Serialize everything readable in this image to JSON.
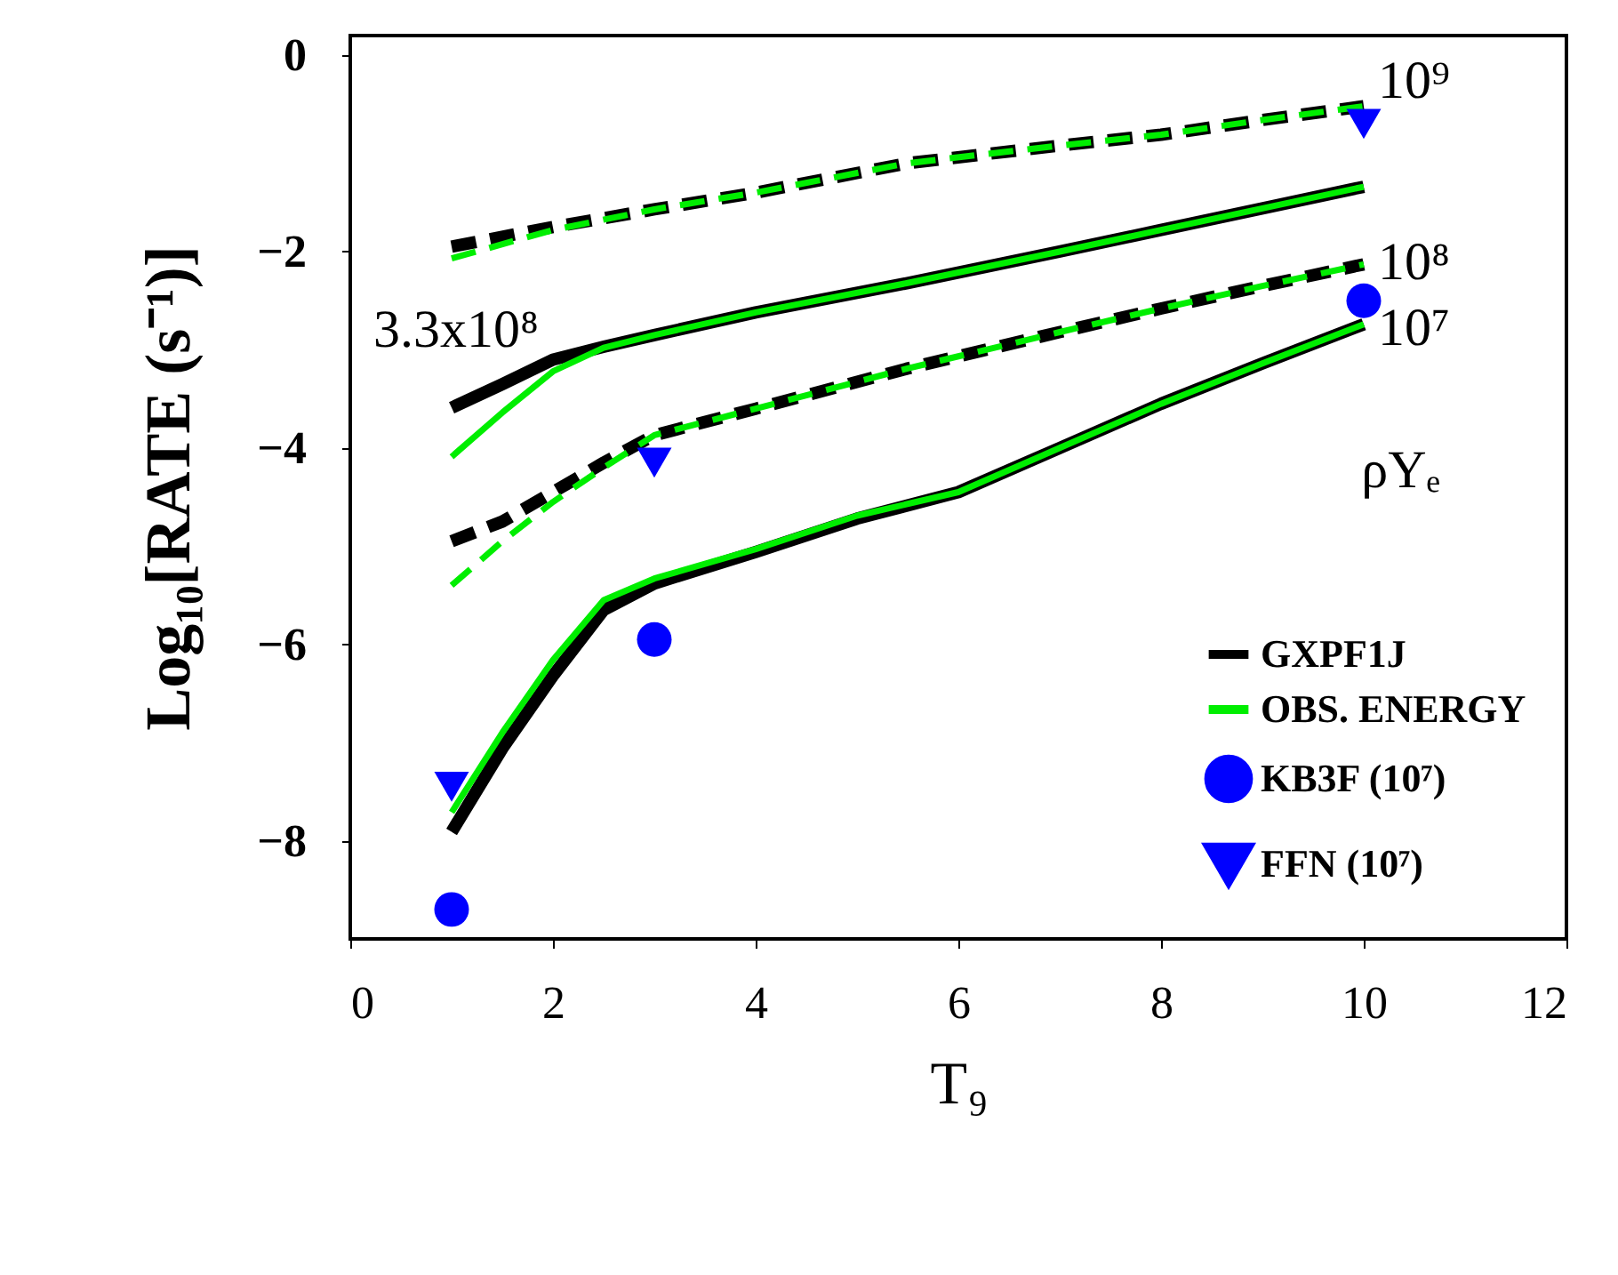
{
  "chart_data": {
    "type": "line",
    "xlabel": "T₉",
    "ylabel": "Log₁₀[RATE (s⁻¹)]",
    "xlim": [
      0,
      12
    ],
    "ylim": [
      -9,
      0.2
    ],
    "xticks": [
      0,
      2,
      4,
      6,
      8,
      10,
      12
    ],
    "yticks": [
      0,
      -2,
      -4,
      -6,
      -8
    ],
    "grid": false,
    "legend": "bottom right",
    "series": [
      {
        "name": "GXPF1J",
        "color": "#000000",
        "line_style": "dashed",
        "x": [
          1,
          2,
          3,
          4,
          5.5,
          7,
          8,
          9,
          10
        ],
        "values": [
          -1.95,
          -1.75,
          -1.57,
          -1.4,
          -1.1,
          -0.92,
          -0.81,
          -0.66,
          -0.52
        ]
      },
      {
        "name": "OBS. ENERGY",
        "color": "#00ee00",
        "line_style": "dashed",
        "x": [
          1,
          2,
          3,
          4,
          5.5,
          7,
          8,
          9,
          10
        ],
        "values": [
          -2.07,
          -1.78,
          -1.57,
          -1.4,
          -1.1,
          -0.92,
          -0.81,
          -0.66,
          -0.52
        ]
      },
      {
        "color": "#000000",
        "line_style": "solid",
        "x": [
          1,
          1.5,
          2,
          2.5,
          3,
          4,
          5.5,
          7,
          8,
          9,
          10
        ],
        "values": [
          -3.59,
          -3.35,
          -3.1,
          -2.97,
          -2.85,
          -2.62,
          -2.32,
          -2.0,
          -1.78,
          -1.56,
          -1.34
        ]
      },
      {
        "color": "#00ee00",
        "line_style": "solid",
        "x": [
          1,
          1.5,
          2,
          2.5,
          3,
          4,
          5.5,
          7,
          8,
          9,
          10
        ],
        "values": [
          -4.09,
          -3.64,
          -3.22,
          -2.98,
          -2.85,
          -2.62,
          -2.32,
          -2.0,
          -1.78,
          -1.56,
          -1.34
        ]
      },
      {
        "color": "#000000",
        "line_style": "dashed",
        "x": [
          1,
          1.5,
          2,
          2.5,
          3,
          4,
          5.5,
          7,
          8,
          9,
          10
        ],
        "values": [
          -4.95,
          -4.75,
          -4.45,
          -4.15,
          -3.87,
          -3.6,
          -3.19,
          -2.82,
          -2.58,
          -2.35,
          -2.13
        ]
      },
      {
        "color": "#00ee00",
        "line_style": "dashed",
        "x": [
          1,
          1.5,
          2,
          2.5,
          3,
          4,
          5.5,
          7,
          8,
          9,
          10
        ],
        "values": [
          -5.4,
          -4.95,
          -4.55,
          -4.2,
          -3.87,
          -3.6,
          -3.19,
          -2.82,
          -2.58,
          -2.35,
          -2.13
        ]
      },
      {
        "color": "#000000",
        "line_style": "solid",
        "x": [
          1,
          1.5,
          2,
          2.5,
          3,
          4,
          5,
          6,
          7,
          8,
          9,
          10
        ],
        "values": [
          -7.91,
          -7.06,
          -6.32,
          -5.65,
          -5.38,
          -5.06,
          -4.72,
          -4.45,
          -4.0,
          -3.55,
          -3.14,
          -2.74
        ]
      },
      {
        "color": "#00ee00",
        "line_style": "solid",
        "x": [
          1,
          1.5,
          2,
          2.5,
          3,
          4,
          5,
          6,
          7,
          8,
          9,
          10
        ],
        "values": [
          -7.71,
          -6.9,
          -6.16,
          -5.55,
          -5.33,
          -5.03,
          -4.69,
          -4.45,
          -4.0,
          -3.55,
          -3.14,
          -2.74
        ]
      },
      {
        "name": "KB3F (10⁷)",
        "type": "scatter",
        "marker": "circle",
        "color": "#0000ff",
        "x": [
          1,
          3,
          10
        ],
        "values": [
          -8.7,
          -5.95,
          -2.5
        ]
      },
      {
        "name": "FFN (10⁷)",
        "type": "scatter",
        "marker": "triangle",
        "color": "#0000ff",
        "x": [
          1,
          3,
          10
        ],
        "values": [
          -7.45,
          -4.15,
          -0.7
        ]
      }
    ],
    "annotations": [
      "10⁹",
      "10⁸",
      "10⁷",
      "3.3x10⁸",
      "ρYₑ"
    ]
  }
}
